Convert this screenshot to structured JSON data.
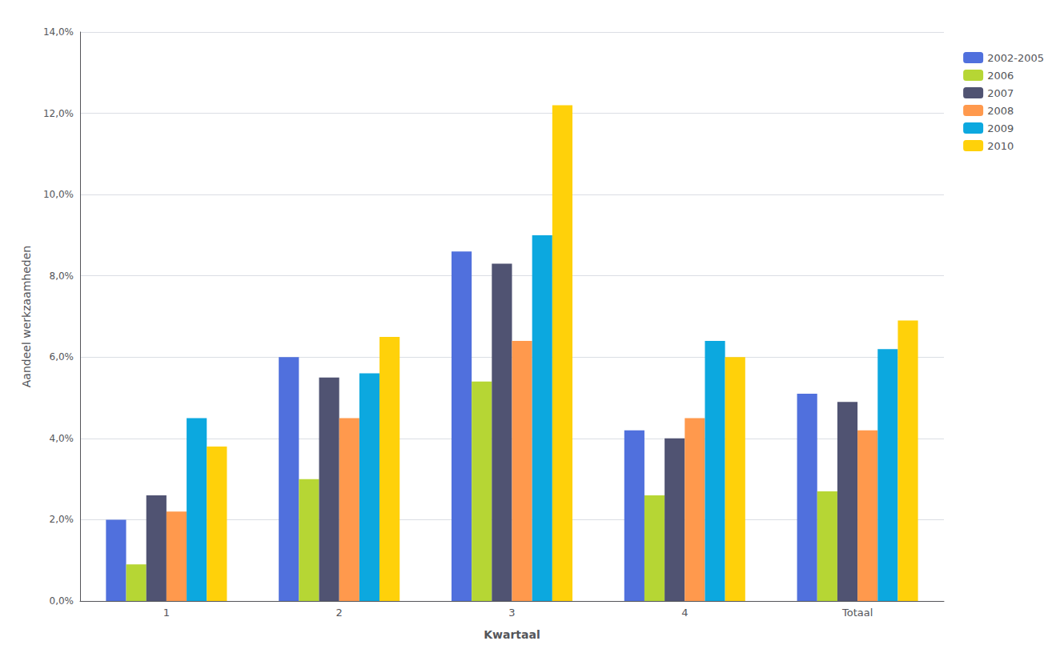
{
  "chart_data": {
    "type": "bar",
    "xlabel": "Kwartaal",
    "ylabel": "Aandeel werkzaamheden",
    "categories": [
      "1",
      "2",
      "3",
      "4",
      "Totaal"
    ],
    "series": [
      {
        "name": "2002-2005",
        "values": [
          0.02,
          0.06,
          0.086,
          0.042,
          0.051
        ]
      },
      {
        "name": "2006",
        "values": [
          0.009,
          0.03,
          0.054,
          0.026,
          0.027
        ]
      },
      {
        "name": "2007",
        "values": [
          0.026,
          0.055,
          0.083,
          0.04,
          0.049
        ]
      },
      {
        "name": "2008",
        "values": [
          0.022,
          0.045,
          0.064,
          0.045,
          0.042
        ]
      },
      {
        "name": "2009",
        "values": [
          0.045,
          0.056,
          0.09,
          0.064,
          0.062
        ]
      },
      {
        "name": "2010",
        "values": [
          0.038,
          0.065,
          0.122,
          0.06,
          0.069
        ]
      }
    ],
    "ylim": [
      0,
      0.14
    ],
    "yticks": [
      {
        "value": 0,
        "label": "0,0%"
      },
      {
        "value": 0.02,
        "label": "2,0%"
      },
      {
        "value": 0.04,
        "label": "4,0%"
      },
      {
        "value": 0.06,
        "label": "6,0%"
      },
      {
        "value": 0.08,
        "label": "8,0%"
      },
      {
        "value": 0.1,
        "label": "10,0%"
      },
      {
        "value": 0.12,
        "label": "12,0%"
      },
      {
        "value": 0.14,
        "label": "14,0%"
      }
    ],
    "grid": true,
    "legend": "right"
  }
}
